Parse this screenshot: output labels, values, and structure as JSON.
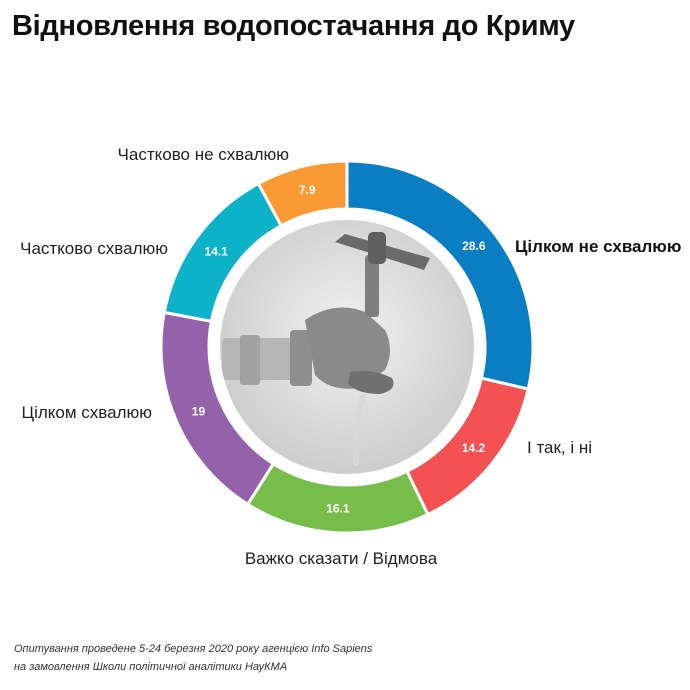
{
  "title": "Відновлення водопостачання до Криму",
  "chart_data": {
    "type": "pie",
    "style": "donut",
    "start_angle_deg": 0,
    "direction": "clockwise",
    "slices": [
      {
        "label": "Цілком не схвалюю",
        "value": 28.6,
        "color": "#0a7ec2",
        "emphasis": true
      },
      {
        "label": "І так, і ні",
        "value": 14.2,
        "color": "#f45252"
      },
      {
        "label": "Важко сказати / Відмова",
        "value": 16.1,
        "color": "#77bd4a"
      },
      {
        "label": "Цілком схвалюю",
        "value": 19,
        "color": "#9461ab"
      },
      {
        "label": "Частково схвалюю",
        "value": 14.1,
        "color": "#0cb3c8"
      },
      {
        "label": "Частково не схвалюю",
        "value": 7.9,
        "color": "#f99a33"
      }
    ]
  },
  "center_image": {
    "icon": "water-tap-photo"
  },
  "footnote": {
    "line1": "Опитування проведене 5-24 березня 2020 року агенцією Info Sapiens",
    "line2": "на замовлення Школи політичної аналітики НауКМА"
  }
}
